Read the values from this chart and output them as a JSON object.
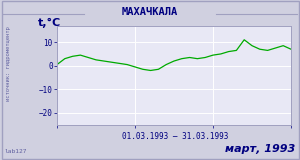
{
  "title": "МАХАЧКАЛА",
  "ylabel": "t,°C",
  "date_label": "01.03.1993 – 31.03.1993",
  "month_label": "март, 1993",
  "source_label": "источник: гидрометцентр",
  "watermark": "lab127",
  "bg_color": "#d0d0e0",
  "plot_bg_color": "#e8e8f5",
  "outer_bg_color": "#d0d0e0",
  "line_color": "#00aa00",
  "title_color": "#000080",
  "label_color": "#6060a0",
  "tick_color": "#000080",
  "grid_color": "#ffffff",
  "border_color": "#a0a0c0",
  "ylim": [
    -25,
    17
  ],
  "yticks": [
    -20,
    -10,
    0,
    10
  ],
  "days": [
    1,
    2,
    3,
    4,
    5,
    6,
    7,
    8,
    9,
    10,
    11,
    12,
    13,
    14,
    15,
    16,
    17,
    18,
    19,
    20,
    21,
    22,
    23,
    24,
    25,
    26,
    27,
    28,
    29,
    30,
    31
  ],
  "temps": [
    0.5,
    3.0,
    4.0,
    4.5,
    3.5,
    2.5,
    2.0,
    1.5,
    1.0,
    0.5,
    -0.5,
    -1.5,
    -2.0,
    -1.5,
    0.5,
    2.0,
    3.0,
    3.5,
    3.0,
    3.5,
    4.5,
    5.0,
    6.0,
    6.5,
    11.0,
    8.5,
    7.0,
    6.5,
    7.5,
    8.5,
    7.0
  ]
}
